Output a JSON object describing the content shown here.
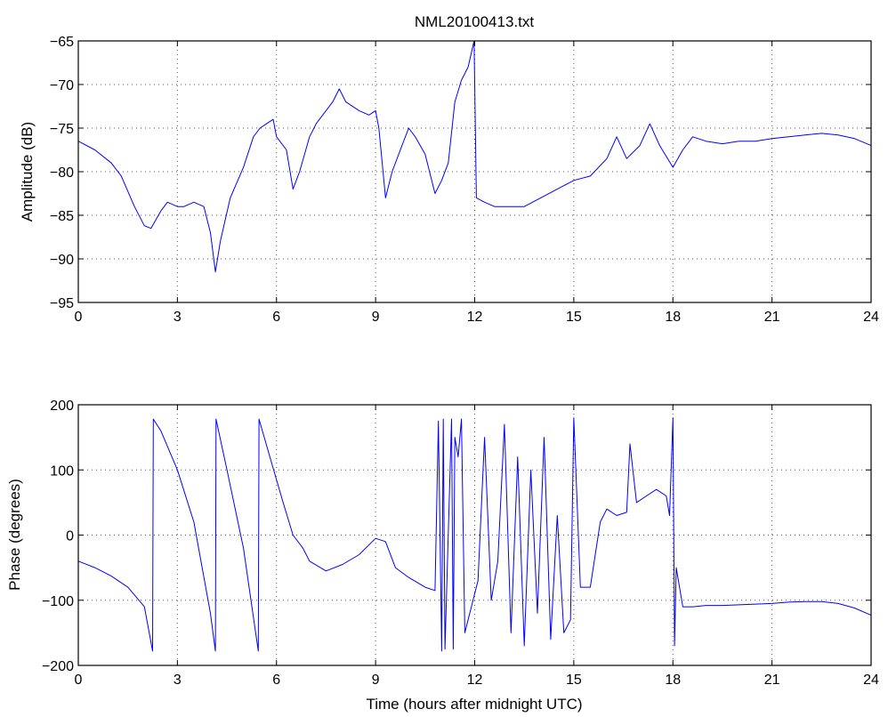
{
  "chart_data": [
    {
      "type": "line",
      "title": "NML20100413.txt",
      "xlabel": "",
      "ylabel": "Amplitude (dB)",
      "xlim": [
        0,
        24
      ],
      "ylim": [
        -95,
        -65
      ],
      "xticks": [
        0,
        3,
        6,
        9,
        12,
        15,
        18,
        21,
        24
      ],
      "yticks": [
        -95,
        -90,
        -85,
        -80,
        -75,
        -70,
        -65
      ],
      "xtick_labels": [
        "0",
        "3",
        "6",
        "9",
        "12",
        "15",
        "18",
        "21",
        "24"
      ],
      "ytick_labels": [
        "−95",
        "−90",
        "−85",
        "−80",
        "−75",
        "−70",
        "−65"
      ],
      "grid": true,
      "color": "#0000ff",
      "x": [
        0,
        0.5,
        1.0,
        1.3,
        1.7,
        2.0,
        2.2,
        2.5,
        2.7,
        3.0,
        3.2,
        3.5,
        3.8,
        4.0,
        4.15,
        4.3,
        4.6,
        5.0,
        5.3,
        5.5,
        5.7,
        5.9,
        6.0,
        6.3,
        6.5,
        6.7,
        7.0,
        7.2,
        7.5,
        7.7,
        7.9,
        8.1,
        8.5,
        8.8,
        9.0,
        9.1,
        9.3,
        9.5,
        9.8,
        10.0,
        10.2,
        10.5,
        10.8,
        11.0,
        11.2,
        11.4,
        11.6,
        11.8,
        11.98,
        12.05,
        12.3,
        12.6,
        13.0,
        13.5,
        14.0,
        14.5,
        15.0,
        15.5,
        16.0,
        16.3,
        16.6,
        17.0,
        17.3,
        17.6,
        18.0,
        18.3,
        18.6,
        19.0,
        19.5,
        20.0,
        20.5,
        21.0,
        21.5,
        22.0,
        22.5,
        23.0,
        23.5,
        24.0
      ],
      "y": [
        -76.5,
        -77.5,
        -79.0,
        -80.5,
        -84.0,
        -86.2,
        -86.5,
        -84.5,
        -83.5,
        -84.0,
        -84.0,
        -83.5,
        -84.0,
        -87.0,
        -91.5,
        -88.0,
        -83.0,
        -79.5,
        -76.0,
        -75.0,
        -74.5,
        -74.0,
        -76.0,
        -77.5,
        -82.0,
        -80.0,
        -76.0,
        -74.5,
        -73.0,
        -72.0,
        -70.5,
        -72.0,
        -73.0,
        -73.5,
        -73.0,
        -75.0,
        -83.0,
        -80.0,
        -77.0,
        -75.0,
        -76.0,
        -78.0,
        -82.5,
        -81.0,
        -79.0,
        -72.0,
        -69.5,
        -68.0,
        -65.0,
        -83.0,
        -83.5,
        -84.0,
        -84.0,
        -84.0,
        -83.0,
        -82.0,
        -81.0,
        -80.5,
        -78.5,
        -76.0,
        -78.5,
        -77.0,
        -74.5,
        -77.0,
        -79.5,
        -77.5,
        -76.0,
        -76.5,
        -76.8,
        -76.5,
        -76.5,
        -76.2,
        -76.0,
        -75.8,
        -75.6,
        -75.8,
        -76.2,
        -77.0
      ]
    },
    {
      "type": "line",
      "title": "",
      "xlabel": "Time (hours after midnight UTC)",
      "ylabel": "Phase (degrees)",
      "xlim": [
        0,
        24
      ],
      "ylim": [
        -200,
        200
      ],
      "xticks": [
        0,
        3,
        6,
        9,
        12,
        15,
        18,
        21,
        24
      ],
      "yticks": [
        -200,
        -100,
        0,
        100,
        200
      ],
      "xtick_labels": [
        "0",
        "3",
        "6",
        "9",
        "12",
        "15",
        "18",
        "21",
        "24"
      ],
      "ytick_labels": [
        "−200",
        "−100",
        "0",
        "100",
        "200"
      ],
      "grid": true,
      "color": "#0000ff",
      "x": [
        0,
        0.5,
        1.0,
        1.5,
        2.0,
        2.25,
        2.27,
        2.5,
        3.0,
        3.5,
        4.0,
        4.15,
        4.17,
        4.5,
        5.0,
        5.45,
        5.47,
        5.8,
        6.2,
        6.5,
        6.8,
        7.0,
        7.5,
        8.0,
        8.5,
        9.0,
        9.3,
        9.6,
        10.0,
        10.5,
        10.8,
        10.9,
        11.0,
        11.05,
        11.1,
        11.3,
        11.35,
        11.4,
        11.5,
        11.6,
        11.7,
        12.0,
        12.1,
        12.3,
        12.5,
        12.7,
        12.9,
        13.1,
        13.3,
        13.5,
        13.7,
        13.9,
        14.1,
        14.3,
        14.5,
        14.7,
        14.9,
        15.0,
        15.2,
        15.5,
        15.8,
        16.0,
        16.3,
        16.6,
        16.7,
        16.9,
        17.2,
        17.5,
        17.8,
        17.9,
        18.0,
        18.05,
        18.1,
        18.3,
        18.6,
        19.0,
        19.5,
        20.0,
        20.5,
        21.0,
        21.5,
        22.0,
        22.5,
        23.0,
        23.5,
        24.0
      ],
      "y": [
        -40,
        -50,
        -63,
        -80,
        -110,
        -178,
        178,
        160,
        100,
        20,
        -120,
        -178,
        178,
        100,
        -20,
        -178,
        178,
        120,
        50,
        0,
        -20,
        -40,
        -55,
        -45,
        -30,
        -5,
        -10,
        -50,
        -65,
        -80,
        -85,
        175,
        -178,
        178,
        -175,
        178,
        -175,
        150,
        120,
        178,
        -150,
        -90,
        -70,
        150,
        -100,
        -40,
        170,
        -150,
        120,
        -170,
        100,
        -120,
        150,
        -160,
        30,
        -150,
        -130,
        180,
        -80,
        -80,
        20,
        40,
        30,
        35,
        140,
        50,
        60,
        70,
        60,
        30,
        180,
        -170,
        -50,
        -110,
        -110,
        -108,
        -108,
        -107,
        -106,
        -105,
        -103,
        -102,
        -102,
        -105,
        -112,
        -123
      ]
    }
  ]
}
